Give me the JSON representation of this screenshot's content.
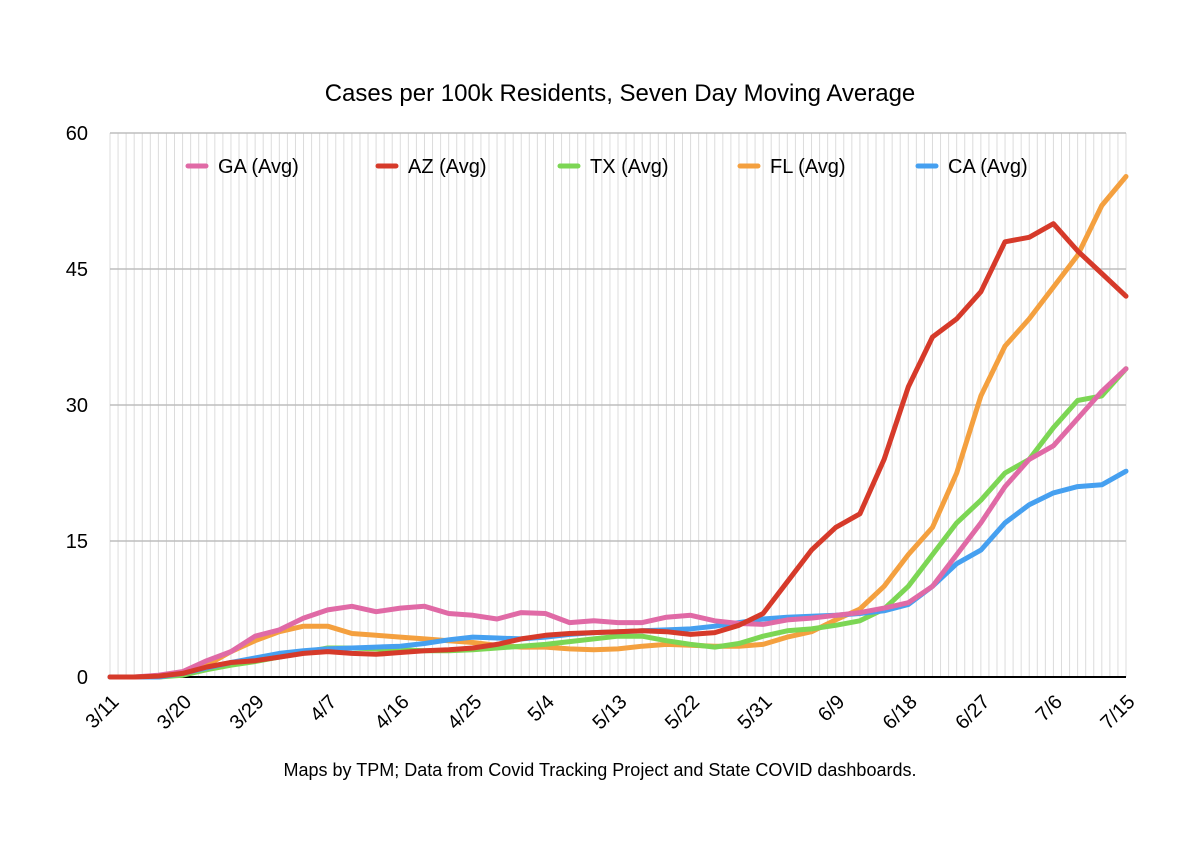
{
  "chart_data": {
    "type": "line",
    "title": "Cases per 100k Residents, Seven Day Moving Average",
    "xlabel": "",
    "ylabel": "",
    "x_ticks": [
      "3/11",
      "3/20",
      "3/29",
      "4/7",
      "4/16",
      "4/25",
      "5/4",
      "5/13",
      "5/22",
      "5/31",
      "6/9",
      "6/18",
      "6/27",
      "7/6",
      "7/15"
    ],
    "ylim": [
      0,
      60
    ],
    "y_ticks": [
      0,
      15,
      30,
      45,
      60
    ],
    "grid": true,
    "legend_position": "top-inside",
    "x": [
      "3/11",
      "3/14",
      "3/17",
      "3/20",
      "3/23",
      "3/26",
      "3/29",
      "4/1",
      "4/4",
      "4/7",
      "4/10",
      "4/13",
      "4/16",
      "4/19",
      "4/22",
      "4/25",
      "4/28",
      "5/1",
      "5/4",
      "5/7",
      "5/10",
      "5/13",
      "5/16",
      "5/19",
      "5/22",
      "5/25",
      "5/28",
      "5/31",
      "6/3",
      "6/6",
      "6/9",
      "6/12",
      "6/15",
      "6/18",
      "6/21",
      "6/24",
      "6/27",
      "6/30",
      "7/3",
      "7/6",
      "7/9",
      "7/12",
      "7/15"
    ],
    "series": [
      {
        "name": "GA (Avg)",
        "color": "#e06aa6",
        "values": [
          0,
          0,
          0.2,
          0.6,
          1.8,
          2.8,
          4.5,
          5.2,
          6.5,
          7.4,
          7.8,
          7.2,
          7.6,
          7.8,
          7.0,
          6.8,
          6.4,
          7.1,
          7.0,
          6.0,
          6.2,
          6.0,
          6.0,
          6.6,
          6.8,
          6.2,
          5.9,
          5.8,
          6.3,
          6.5,
          6.8,
          7.1,
          7.6,
          8.2,
          10.0,
          13.5,
          17.0,
          21.0,
          24.0,
          25.5,
          28.5,
          31.5,
          34.0
        ]
      },
      {
        "name": "AZ (Avg)",
        "color": "#d63a2a",
        "values": [
          0,
          0,
          0.1,
          0.4,
          1.1,
          1.6,
          1.8,
          2.2,
          2.6,
          2.8,
          2.6,
          2.5,
          2.7,
          2.9,
          3.0,
          3.2,
          3.6,
          4.2,
          4.6,
          4.8,
          4.9,
          5.0,
          5.1,
          5.0,
          4.7,
          4.9,
          5.7,
          7.0,
          10.5,
          14.0,
          16.5,
          18.0,
          24.0,
          32.0,
          37.5,
          39.5,
          42.5,
          48.0,
          48.5,
          50.0,
          47.0,
          44.5,
          42.0
        ]
      },
      {
        "name": "TX (Avg)",
        "color": "#7cd654",
        "values": [
          0,
          0,
          0,
          0.2,
          0.8,
          1.3,
          1.7,
          2.2,
          2.7,
          3.2,
          3.2,
          3.1,
          3.0,
          2.9,
          2.9,
          3.0,
          3.2,
          3.4,
          3.6,
          3.9,
          4.2,
          4.5,
          4.5,
          4.0,
          3.6,
          3.3,
          3.7,
          4.5,
          5.1,
          5.3,
          5.7,
          6.2,
          7.5,
          10.0,
          13.5,
          17.0,
          19.5,
          22.5,
          24.0,
          27.5,
          30.5,
          31.0,
          34.0
        ]
      },
      {
        "name": "FL (Avg)",
        "color": "#f4a03f",
        "values": [
          0,
          0,
          0,
          0.3,
          1.3,
          2.8,
          4.0,
          5.0,
          5.6,
          5.6,
          4.8,
          4.6,
          4.4,
          4.2,
          4.0,
          3.8,
          3.5,
          3.3,
          3.3,
          3.1,
          3.0,
          3.1,
          3.4,
          3.6,
          3.5,
          3.4,
          3.4,
          3.6,
          4.4,
          5.0,
          6.3,
          7.5,
          10.0,
          13.5,
          16.5,
          22.5,
          31.0,
          36.5,
          39.5,
          43.0,
          46.5,
          52.0,
          55.2
        ]
      },
      {
        "name": "CA (Avg)",
        "color": "#46a0f0",
        "values": [
          0,
          0,
          0,
          0.4,
          1.0,
          1.6,
          2.1,
          2.6,
          2.9,
          3.1,
          3.2,
          3.3,
          3.4,
          3.7,
          4.1,
          4.4,
          4.3,
          4.2,
          4.4,
          4.7,
          4.9,
          5.0,
          5.1,
          5.2,
          5.3,
          5.6,
          6.0,
          6.4,
          6.6,
          6.7,
          6.8,
          7.0,
          7.3,
          8.0,
          10.0,
          12.5,
          14.0,
          17.0,
          19.0,
          20.3,
          21.0,
          21.2,
          22.7
        ]
      }
    ]
  },
  "caption": "Maps by TPM; Data from Covid Tracking Project and State COVID dashboards."
}
